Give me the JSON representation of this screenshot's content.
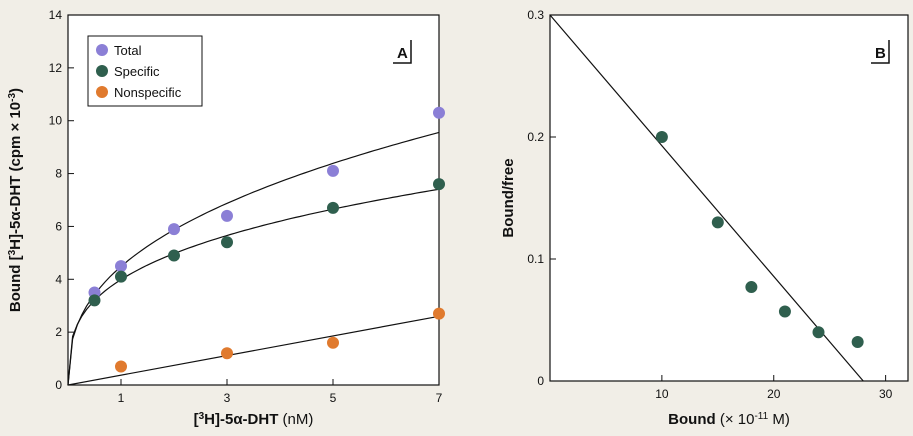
{
  "chart_data": [
    {
      "type": "scatter",
      "panel_label": "A",
      "xlabel_parts": [
        {
          "t": "[",
          "sup": false
        },
        {
          "t": "3",
          "sup": true
        },
        {
          "t": "H]-5α-DHT",
          "sup": false
        },
        {
          "t": " (nM)",
          "sup": false,
          "bold": false
        }
      ],
      "ylabel_parts": [
        {
          "t": "Bound [",
          "sup": false
        },
        {
          "t": "3",
          "sup": true
        },
        {
          "t": "H]-5α-DHT (cpm × 10",
          "sup": false
        },
        {
          "t": "-3",
          "sup": true
        },
        {
          "t": ")",
          "sup": false
        }
      ],
      "xlim": [
        0,
        7
      ],
      "ylim": [
        0,
        14
      ],
      "x_ticks": [
        1,
        3,
        5,
        7
      ],
      "x_tick_labels": [
        "1",
        "3",
        "5",
        "7"
      ],
      "y_ticks": [
        0,
        2,
        4,
        6,
        8,
        10,
        12,
        14
      ],
      "y_tick_labels": [
        "0",
        "2",
        "4",
        "6",
        "8",
        "10",
        "12",
        "14"
      ],
      "legend": "top-left",
      "series": [
        {
          "name": "Total",
          "color": "#8b7fd6",
          "x": [
            0.5,
            1,
            2,
            3,
            5,
            7
          ],
          "y": [
            3.5,
            4.5,
            5.9,
            6.4,
            8.1,
            10.3
          ],
          "fit": "saturation"
        },
        {
          "name": "Specific",
          "color": "#2f5f4e",
          "x": [
            0.5,
            1,
            2,
            3,
            5,
            7
          ],
          "y": [
            3.2,
            4.1,
            4.9,
            5.4,
            6.7,
            7.6
          ],
          "fit": "saturation"
        },
        {
          "name": "Nonspecific",
          "color": "#e07a2e",
          "x": [
            1,
            3,
            5,
            7
          ],
          "y": [
            0.7,
            1.2,
            1.6,
            2.7
          ],
          "fit": "linear"
        }
      ]
    },
    {
      "type": "scatter",
      "panel_label": "B",
      "xlabel_parts": [
        {
          "t": "Bound",
          "sup": false
        },
        {
          "t": " (× 10",
          "sup": false,
          "bold": false
        },
        {
          "t": "-11",
          "sup": true,
          "bold": false
        },
        {
          "t": " M)",
          "sup": false,
          "bold": false
        }
      ],
      "ylabel_parts": [
        {
          "t": "Bound/free",
          "sup": false
        }
      ],
      "xlim": [
        0,
        32
      ],
      "ylim": [
        0,
        0.3
      ],
      "x_ticks": [
        10,
        20,
        30
      ],
      "x_tick_labels": [
        "10",
        "20",
        "30"
      ],
      "y_ticks": [
        0,
        0.1,
        0.2,
        0.3
      ],
      "y_tick_labels": [
        "0",
        "0.1",
        "0.2",
        "0.3"
      ],
      "series": [
        {
          "color": "#2f5f4e",
          "x": [
            10,
            15,
            18,
            21,
            24,
            27.5
          ],
          "y": [
            0.2,
            0.13,
            0.077,
            0.057,
            0.04,
            0.032
          ]
        }
      ],
      "fit_line": {
        "x": [
          0,
          28
        ],
        "y": [
          0.3,
          0
        ]
      }
    }
  ]
}
